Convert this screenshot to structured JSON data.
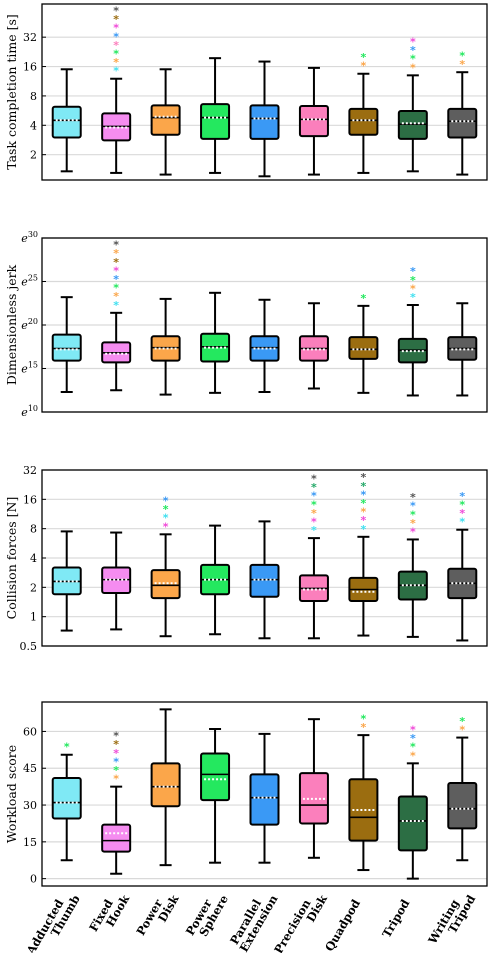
{
  "categories": [
    "Adducted\nThumb",
    "Fixed\nHook",
    "Power\nDisk",
    "Power\nSphere",
    "Parallel\nExtension",
    "Precision\nDisk",
    "Quadpod",
    "Tripod",
    "Writing\nTripod"
  ],
  "colors": [
    "#7fe9f5",
    "#f58cf0",
    "#fba64a",
    "#24e85f",
    "#3a99f5",
    "#fb7fbc",
    "#9b6d10",
    "#2c6e44",
    "#5e5e5e"
  ],
  "chart_data": [
    {
      "type": "box",
      "ylabel": "Task completion time [s]",
      "yscale": "log2",
      "ylim": [
        1.1,
        70
      ],
      "yticks": [
        2,
        4,
        8,
        16,
        32
      ],
      "ytick_labels": [
        "2",
        "4",
        "8",
        "16",
        "32"
      ],
      "boxes": [
        {
          "whislo": 1.35,
          "q1": 3.0,
          "med": 4.5,
          "mean": 4.5,
          "q3": 6.2,
          "whishi": 15.0
        },
        {
          "whislo": 1.3,
          "q1": 2.8,
          "med": 3.9,
          "mean": 3.8,
          "q3": 5.3,
          "whishi": 12.0
        },
        {
          "whislo": 1.25,
          "q1": 3.2,
          "med": 4.8,
          "mean": 4.9,
          "q3": 6.4,
          "whishi": 15.0
        },
        {
          "whislo": 1.3,
          "q1": 2.9,
          "med": 4.8,
          "mean": 4.8,
          "q3": 6.6,
          "whishi": 19.5
        },
        {
          "whislo": 1.2,
          "q1": 2.9,
          "med": 4.7,
          "mean": 4.7,
          "q3": 6.4,
          "whishi": 18.0
        },
        {
          "whislo": 1.25,
          "q1": 3.1,
          "med": 4.6,
          "mean": 4.6,
          "q3": 6.3,
          "whishi": 15.5
        },
        {
          "whislo": 1.3,
          "q1": 3.2,
          "med": 4.5,
          "mean": 4.5,
          "q3": 5.9,
          "whishi": 13.5
        },
        {
          "whislo": 1.35,
          "q1": 2.9,
          "med": 4.1,
          "mean": 4.2,
          "q3": 5.6,
          "whishi": 13.0
        },
        {
          "whislo": 1.25,
          "q1": 3.0,
          "med": 4.4,
          "mean": 4.4,
          "q3": 5.9,
          "whishi": 14.0
        }
      ],
      "annotations": [
        {
          "box": 1,
          "stars": [
            "#40e0f0",
            "#fba64a",
            "#24e85f",
            "#fb7fbc",
            "#3a99f5",
            "#f04ad8",
            "#9b6d10",
            "#555555"
          ]
        },
        {
          "box": 6,
          "stars": [
            "#fba64a",
            "#24e85f"
          ]
        },
        {
          "box": 7,
          "stars": [
            "#fba64a",
            "#24e85f",
            "#3a99f5",
            "#f04ad8"
          ]
        },
        {
          "box": 8,
          "stars": [
            "#fba64a",
            "#24e85f"
          ]
        }
      ]
    },
    {
      "type": "box",
      "ylabel": "Dimensionless jerk",
      "yscale": "exp",
      "ylim": [
        10,
        30
      ],
      "yticks": [
        10,
        15,
        20,
        25,
        30
      ],
      "ytick_labels": [
        "e10",
        "e15",
        "e20",
        "e25",
        "e30"
      ],
      "boxes": [
        {
          "whislo": 12.3,
          "q1": 15.9,
          "med": 17.3,
          "mean": 17.2,
          "q3": 18.9,
          "whishi": 23.2
        },
        {
          "whislo": 12.5,
          "q1": 15.7,
          "med": 16.8,
          "mean": 16.7,
          "q3": 18.0,
          "whishi": 21.4
        },
        {
          "whislo": 12.0,
          "q1": 15.9,
          "med": 17.4,
          "mean": 17.3,
          "q3": 18.7,
          "whishi": 23.0
        },
        {
          "whislo": 12.2,
          "q1": 15.8,
          "med": 17.5,
          "mean": 17.4,
          "q3": 19.0,
          "whishi": 23.7
        },
        {
          "whislo": 12.3,
          "q1": 15.9,
          "med": 17.4,
          "mean": 17.3,
          "q3": 18.7,
          "whishi": 22.9
        },
        {
          "whislo": 12.7,
          "q1": 15.9,
          "med": 17.3,
          "mean": 17.2,
          "q3": 18.7,
          "whishi": 22.5
        },
        {
          "whislo": 12.2,
          "q1": 16.1,
          "med": 17.2,
          "mean": 17.2,
          "q3": 18.6,
          "whishi": 22.2
        },
        {
          "whislo": 11.9,
          "q1": 15.7,
          "med": 17.1,
          "mean": 17.0,
          "q3": 18.4,
          "whishi": 22.3
        },
        {
          "whislo": 11.9,
          "q1": 16.0,
          "med": 17.3,
          "mean": 17.2,
          "q3": 18.6,
          "whishi": 22.5
        }
      ],
      "annotations": [
        {
          "box": 1,
          "stars": [
            "#40e0f0",
            "#fba64a",
            "#24e85f",
            "#3a99f5",
            "#f04ad8",
            "#9b6d10",
            "#fba64a",
            "#555555"
          ]
        },
        {
          "box": 6,
          "stars": [
            "#24e85f"
          ]
        },
        {
          "box": 7,
          "stars": [
            "#40e0f0",
            "#fba64a",
            "#24e85f",
            "#3a99f5"
          ]
        }
      ]
    },
    {
      "type": "box",
      "ylabel": "Collision forces [N]",
      "yscale": "log2",
      "ylim": [
        0.5,
        32
      ],
      "yticks": [
        0.5,
        1,
        2,
        4,
        8,
        16,
        32
      ],
      "ytick_labels": [
        "0.5",
        "1",
        "2",
        "4",
        "8",
        "16",
        "32"
      ],
      "boxes": [
        {
          "whislo": 0.72,
          "q1": 1.7,
          "med": 2.3,
          "mean": 2.3,
          "q3": 3.2,
          "whishi": 7.5
        },
        {
          "whislo": 0.74,
          "q1": 1.75,
          "med": 2.4,
          "mean": 2.4,
          "q3": 3.2,
          "whishi": 7.3
        },
        {
          "whislo": 0.63,
          "q1": 1.55,
          "med": 2.1,
          "mean": 2.2,
          "q3": 3.0,
          "whishi": 7.0
        },
        {
          "whislo": 0.66,
          "q1": 1.7,
          "med": 2.4,
          "mean": 2.4,
          "q3": 3.4,
          "whishi": 8.6
        },
        {
          "whislo": 0.6,
          "q1": 1.6,
          "med": 2.4,
          "mean": 2.4,
          "q3": 3.4,
          "whishi": 9.5
        },
        {
          "whislo": 0.6,
          "q1": 1.45,
          "med": 1.95,
          "mean": 1.9,
          "q3": 2.65,
          "whishi": 6.4
        },
        {
          "whislo": 0.64,
          "q1": 1.45,
          "med": 1.9,
          "mean": 1.8,
          "q3": 2.5,
          "whishi": 6.6
        },
        {
          "whislo": 0.62,
          "q1": 1.5,
          "med": 2.1,
          "mean": 2.1,
          "q3": 2.9,
          "whishi": 6.2
        },
        {
          "whislo": 0.57,
          "q1": 1.55,
          "med": 2.2,
          "mean": 2.2,
          "q3": 3.1,
          "whishi": 7.8
        }
      ],
      "annotations": [
        {
          "box": 2,
          "stars": [
            "#f04ad8",
            "#40e0f0",
            "#24e85f",
            "#3a99f5"
          ]
        },
        {
          "box": 5,
          "stars": [
            "#40e0f0",
            "#f04ad8",
            "#fba64a",
            "#24e85f",
            "#3a99f5",
            "#24a868",
            "#555555"
          ]
        },
        {
          "box": 6,
          "stars": [
            "#40e0f0",
            "#f04ad8",
            "#fba64a",
            "#24e85f",
            "#3a99f5",
            "#24a868",
            "#555555"
          ]
        },
        {
          "box": 7,
          "stars": [
            "#f04ad8",
            "#fba64a",
            "#24e85f",
            "#3a99f5",
            "#555555"
          ]
        },
        {
          "box": 8,
          "stars": [
            "#40e0f0",
            "#f04ad8",
            "#24e85f",
            "#3a99f5"
          ]
        }
      ]
    },
    {
      "type": "box",
      "ylabel": "Workload score",
      "yscale": "linear",
      "ylim": [
        -3,
        72
      ],
      "yticks": [
        0,
        15,
        30,
        45,
        60
      ],
      "ytick_labels": [
        "0",
        "15",
        "30",
        "45",
        "60"
      ],
      "boxes": [
        {
          "whislo": 7.5,
          "q1": 24.5,
          "med": 31,
          "mean": 31,
          "q3": 41,
          "whishi": 50.5
        },
        {
          "whislo": 2,
          "q1": 11,
          "med": 15.5,
          "mean": 18.5,
          "q3": 22,
          "whishi": 37.5
        },
        {
          "whislo": 5.5,
          "q1": 29.5,
          "med": 37.5,
          "mean": 37.5,
          "q3": 47,
          "whishi": 69
        },
        {
          "whislo": 6.5,
          "q1": 32,
          "med": 42.5,
          "mean": 40.5,
          "q3": 51,
          "whishi": 61
        },
        {
          "whislo": 6.5,
          "q1": 22,
          "med": 33,
          "mean": 33,
          "q3": 42.5,
          "whishi": 59
        },
        {
          "whislo": 8.5,
          "q1": 22.5,
          "med": 30,
          "mean": 32.5,
          "q3": 43,
          "whishi": 65
        },
        {
          "whislo": 3.5,
          "q1": 15.5,
          "med": 25,
          "mean": 28,
          "q3": 40.5,
          "whishi": 58.5
        },
        {
          "whislo": 0,
          "q1": 11.5,
          "med": 23.5,
          "mean": 23.5,
          "q3": 33.5,
          "whishi": 47
        },
        {
          "whislo": 7.5,
          "q1": 20.5,
          "med": 28.5,
          "mean": 28.5,
          "q3": 39,
          "whishi": 57.5
        }
      ],
      "annotations": [
        {
          "box": 0,
          "stars": [
            "#24e85f"
          ]
        },
        {
          "box": 1,
          "stars": [
            "#fba64a",
            "#24e85f",
            "#3a99f5",
            "#f04ad8",
            "#9b6d10",
            "#555555"
          ]
        },
        {
          "box": 6,
          "stars": [
            "#fba64a",
            "#24e85f"
          ]
        },
        {
          "box": 7,
          "stars": [
            "#fba64a",
            "#24e85f",
            "#3a99f5",
            "#f04ad8"
          ]
        },
        {
          "box": 8,
          "stars": [
            "#fba64a",
            "#24e85f"
          ]
        }
      ]
    }
  ]
}
